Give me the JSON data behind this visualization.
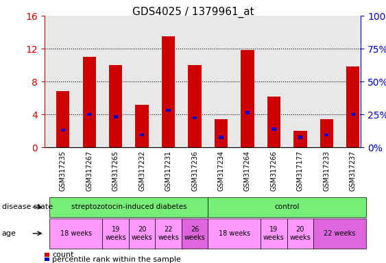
{
  "title": "GDS4025 / 1379961_at",
  "samples": [
    "GSM317235",
    "GSM317267",
    "GSM317265",
    "GSM317232",
    "GSM317231",
    "GSM317236",
    "GSM317234",
    "GSM317264",
    "GSM317266",
    "GSM317177",
    "GSM317233",
    "GSM317237"
  ],
  "count_values": [
    6.8,
    11.0,
    10.0,
    5.2,
    13.5,
    10.0,
    3.4,
    11.8,
    6.2,
    2.0,
    3.4,
    9.8
  ],
  "percentile_values": [
    2.1,
    4.0,
    3.7,
    1.5,
    4.5,
    3.6,
    1.2,
    4.2,
    2.2,
    1.2,
    1.5,
    4.0
  ],
  "ylim_left": [
    0,
    16
  ],
  "ylim_right": [
    0,
    100
  ],
  "yticks_left": [
    0,
    4,
    8,
    12,
    16
  ],
  "yticks_right": [
    0,
    25,
    50,
    75,
    100
  ],
  "ytick_labels_right": [
    "0%",
    "25%",
    "50%",
    "75%",
    "100%"
  ],
  "bar_color": "#cc0000",
  "percentile_color": "#0000cc",
  "bg_color": "#ffffff",
  "tick_label_color_left": "#cc0000",
  "tick_label_color_right": "#0000cc",
  "axes_bg_color": "#e8e8e8",
  "disease_state_groups": [
    {
      "label": "streptozotocin-induced diabetes",
      "start": 0,
      "end": 6,
      "color": "#77ee77"
    },
    {
      "label": "control",
      "start": 6,
      "end": 12,
      "color": "#77ee77"
    }
  ],
  "age_groups": [
    {
      "label": "18 weeks",
      "start": 0,
      "end": 2,
      "color": "#ff99ff"
    },
    {
      "label": "19\nweeks",
      "start": 2,
      "end": 3,
      "color": "#ff99ff"
    },
    {
      "label": "20\nweeks",
      "start": 3,
      "end": 4,
      "color": "#ff99ff"
    },
    {
      "label": "22\nweeks",
      "start": 4,
      "end": 5,
      "color": "#ff99ff"
    },
    {
      "label": "26\nweeks",
      "start": 5,
      "end": 6,
      "color": "#dd66dd"
    },
    {
      "label": "18 weeks",
      "start": 6,
      "end": 8,
      "color": "#ff99ff"
    },
    {
      "label": "19\nweeks",
      "start": 8,
      "end": 9,
      "color": "#ff99ff"
    },
    {
      "label": "20\nweeks",
      "start": 9,
      "end": 10,
      "color": "#ff99ff"
    },
    {
      "label": "22 weeks",
      "start": 10,
      "end": 12,
      "color": "#dd66dd"
    }
  ],
  "legend_count_label": "count",
  "legend_percentile_label": "percentile rank within the sample",
  "disease_state_label": "disease state",
  "age_label": "age",
  "xlim": [
    -0.7,
    11.3
  ]
}
